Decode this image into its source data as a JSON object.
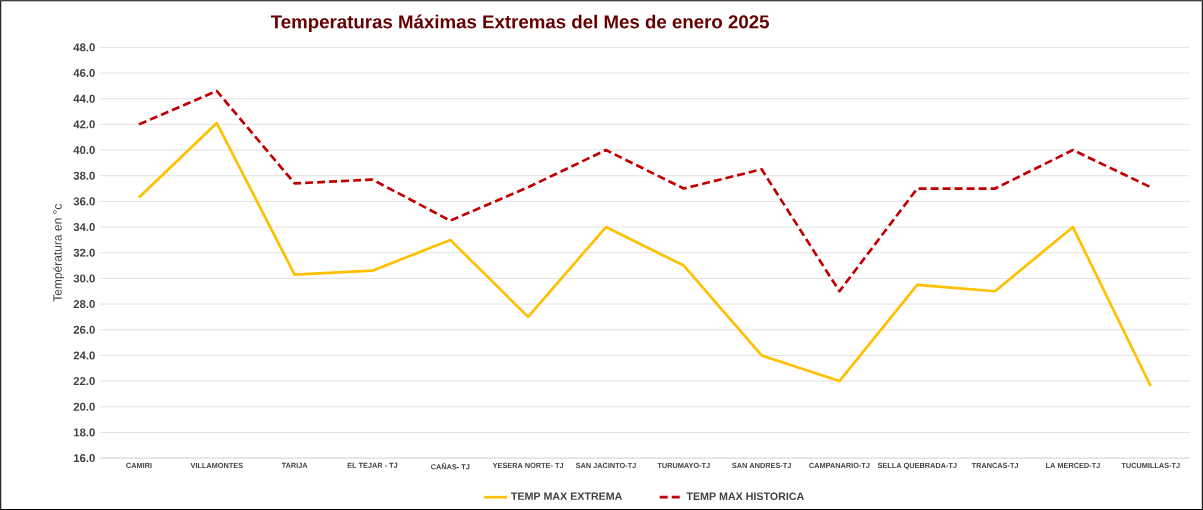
{
  "chart_data": {
    "type": "line",
    "title": "Temperaturas Máximas Extremas del Mes de enero 2025",
    "ylabel": "Températura en °c",
    "categories": [
      "CAMIRI",
      "VILLAMONTES",
      "TARIJA",
      "EL TEJAR - TJ",
      "CAÑAS- TJ",
      "YESERA NORTE- TJ",
      "SAN JACINTO-TJ",
      "TURUMAYO-TJ",
      "SAN ANDRES-TJ",
      "CAMPANARIO-TJ",
      "SELLA QUEBRADA-TJ",
      "TRANCAS-TJ",
      "LA MERCED-TJ",
      "TUCUMILLAS-TJ"
    ],
    "series": [
      {
        "name": "TEMP MAX EXTREMA",
        "color": "#ffc000",
        "line_style": "solid",
        "values": [
          36.3,
          42.1,
          30.3,
          30.6,
          33.0,
          27.0,
          34.0,
          31.0,
          24.0,
          22.0,
          29.5,
          29.0,
          34.0,
          21.6
        ]
      },
      {
        "name": "TEMP MAX HISTORICA",
        "color": "#c00000",
        "line_style": "dashed",
        "values": [
          42.0,
          44.6,
          37.4,
          37.7,
          34.5,
          37.1,
          40.0,
          37.0,
          38.5,
          29.0,
          37.0,
          37.0,
          40.0,
          37.1
        ]
      }
    ],
    "ylim": [
      16,
      48
    ],
    "yticks": [
      {
        "value": 16,
        "label": "16.0"
      },
      {
        "value": 18,
        "label": "18.0"
      },
      {
        "value": 20,
        "label": "20.0"
      },
      {
        "value": 22,
        "label": "22.0"
      },
      {
        "value": 24,
        "label": "24.0"
      },
      {
        "value": 26,
        "label": "26.0"
      },
      {
        "value": 28,
        "label": "28.0"
      },
      {
        "value": 30,
        "label": "30.0"
      },
      {
        "value": 32,
        "label": "32.0"
      },
      {
        "value": 34,
        "label": "34.0"
      },
      {
        "value": 36,
        "label": "36.0"
      },
      {
        "value": 38,
        "label": "38.0"
      },
      {
        "value": 40,
        "label": "40.0"
      },
      {
        "value": 42,
        "label": "42.0"
      },
      {
        "value": 44,
        "label": "44.0"
      },
      {
        "value": 46,
        "label": "46.0"
      },
      {
        "value": 48,
        "label": "48.0"
      }
    ],
    "grid": "y",
    "legend": "bottom"
  }
}
